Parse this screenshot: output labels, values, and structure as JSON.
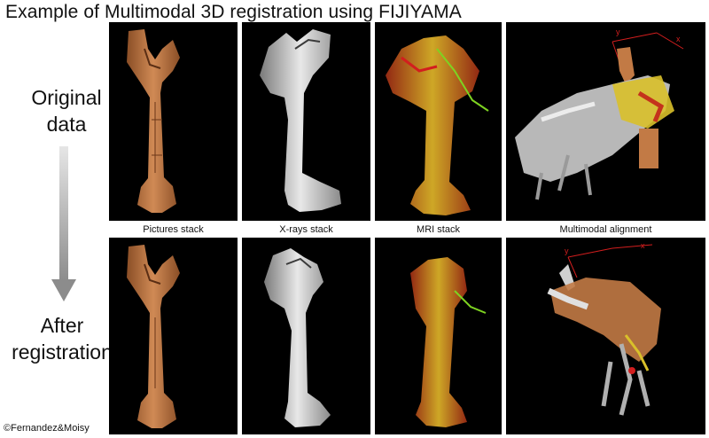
{
  "title": "Example of Multimodal 3D registration using FIJIYAMA",
  "rows": {
    "original_line1": "Original",
    "original_line2": "data",
    "after_line1": "After",
    "after_line2": "registration"
  },
  "columns": [
    "Pictures stack",
    "X-rays stack",
    "MRI stack",
    "Multimodal alignment"
  ],
  "axis_labels": {
    "x": "x",
    "y": "y"
  },
  "copyright": "©Fernandez&Moisy",
  "colors": {
    "background": "#ffffff",
    "panel_bg": "#000000",
    "wood": "#c27a45",
    "xray": "#d8d8d8",
    "mri_red": "#c4321c",
    "mri_yellow": "#d9c02a",
    "axis_red": "#d21e1e",
    "arrow_gray": "#9a9a9a"
  }
}
